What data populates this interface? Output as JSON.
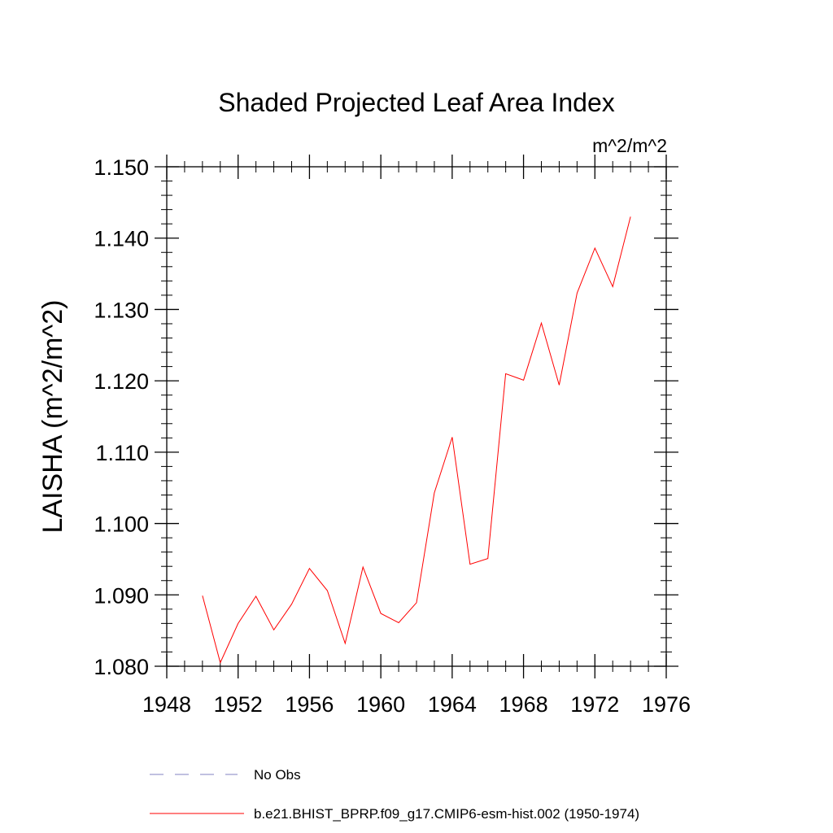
{
  "chart_data": {
    "type": "line",
    "title": "Shaded Projected Leaf Area Index",
    "units_label": "m^2/m^2",
    "ylabel": "LAISHA  (m^2/m^2)",
    "xlabel": "",
    "xlim": [
      1948,
      1976
    ],
    "ylim": [
      1.08,
      1.15
    ],
    "x_ticks": [
      "1948",
      "1952",
      "1956",
      "1960",
      "1964",
      "1968",
      "1972",
      "1976"
    ],
    "y_ticks": [
      "1.080",
      "1.090",
      "1.100",
      "1.110",
      "1.120",
      "1.130",
      "1.140",
      "1.150"
    ],
    "grid": false,
    "legend_position": "bottom",
    "series": [
      {
        "name": "b.e21.BHIST_BPRP.f09_g17.CMIP6-esm-hist.002 (1950-1974)",
        "color": "#ff0000",
        "style": "solid",
        "x": [
          1950,
          1951,
          1952,
          1953,
          1954,
          1955,
          1956,
          1957,
          1958,
          1959,
          1960,
          1961,
          1962,
          1963,
          1964,
          1965,
          1966,
          1967,
          1968,
          1969,
          1970,
          1971,
          1972,
          1973,
          1974
        ],
        "values": [
          1.0899,
          1.0805,
          1.086,
          1.0898,
          1.0851,
          1.0887,
          1.0937,
          1.0906,
          1.0832,
          1.0939,
          1.0874,
          1.0861,
          1.0889,
          1.1043,
          1.1121,
          1.0943,
          1.0951,
          1.121,
          1.1201,
          1.1281,
          1.1194,
          1.1323,
          1.1386,
          1.1332,
          1.143
        ]
      }
    ],
    "legend": [
      {
        "label": "No Obs",
        "color": "#8080c0",
        "style": "dashed"
      },
      {
        "label": "b.e21.BHIST_BPRP.f09_g17.CMIP6-esm-hist.002 (1950-1974)",
        "color": "#ff0000",
        "style": "solid"
      }
    ]
  }
}
